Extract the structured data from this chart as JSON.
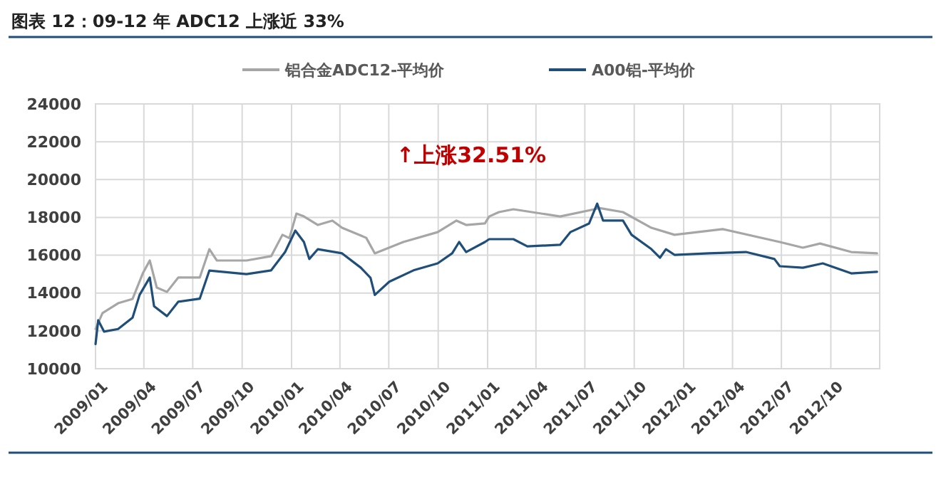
{
  "chart_data": {
    "type": "line",
    "title": "图表 12：09-12 年 ADC12 上涨近 33%",
    "annotations": [
      "↑上涨32.51%"
    ],
    "legend": "top",
    "grid": true,
    "line_style": "solid",
    "marker": "none",
    "xlim": [
      "2009-01-01",
      "2012-12-31"
    ],
    "xticks": [
      {
        "value": "2009-01-01",
        "label": "2009/01"
      },
      {
        "value": "2009-04-01",
        "label": "2009/04"
      },
      {
        "value": "2009-07-01",
        "label": "2009/07"
      },
      {
        "value": "2009-10-01",
        "label": "2009/10"
      },
      {
        "value": "2010-01-01",
        "label": "2010/01"
      },
      {
        "value": "2010-04-01",
        "label": "2010/04"
      },
      {
        "value": "2010-07-01",
        "label": "2010/07"
      },
      {
        "value": "2010-10-01",
        "label": "2010/10"
      },
      {
        "value": "2011-01-01",
        "label": "2011/01"
      },
      {
        "value": "2011-04-01",
        "label": "2011/04"
      },
      {
        "value": "2011-07-01",
        "label": "2011/07"
      },
      {
        "value": "2011-10-01",
        "label": "2011/10"
      },
      {
        "value": "2012-01-01",
        "label": "2012/01"
      },
      {
        "value": "2012-04-01",
        "label": "2012/04"
      },
      {
        "value": "2012-07-01",
        "label": "2012/07"
      },
      {
        "value": "2012-10-01",
        "label": "2012/10"
      }
    ],
    "ylim": [
      10000,
      24000
    ],
    "yticks": [
      10000,
      12000,
      14000,
      16000,
      18000,
      20000,
      22000,
      24000
    ],
    "series": [
      {
        "name": "铝合金ADC12-平均价",
        "color": "#a6a6a6",
        "x": [
          "2009-01-01",
          "2009-01-14",
          "2009-02-12",
          "2009-03-11",
          "2009-03-30",
          "2009-04-12",
          "2009-04-25",
          "2009-05-14",
          "2009-06-04",
          "2009-07-14",
          "2009-08-01",
          "2009-08-15",
          "2009-10-09",
          "2009-11-24",
          "2009-12-15",
          "2009-12-28",
          "2010-01-10",
          "2010-01-24",
          "2010-02-19",
          "2010-03-18",
          "2010-04-05",
          "2010-05-20",
          "2010-06-05",
          "2010-07-28",
          "2010-09-30",
          "2010-11-04",
          "2010-11-22",
          "2010-12-27",
          "2011-01-04",
          "2011-01-22",
          "2011-02-18",
          "2011-05-16",
          "2011-07-19",
          "2011-07-27",
          "2011-09-10",
          "2011-11-02",
          "2011-12-15",
          "2012-03-14",
          "2012-06-28",
          "2012-08-10",
          "2012-09-11",
          "2012-11-08",
          "2012-12-26"
        ],
        "values": [
          12100,
          12940,
          13460,
          13690,
          15040,
          15720,
          14290,
          14060,
          14820,
          14820,
          16320,
          15720,
          15720,
          15950,
          17080,
          16900,
          18200,
          18050,
          17600,
          17830,
          17450,
          16920,
          16100,
          16700,
          17220,
          17830,
          17600,
          17680,
          18050,
          18280,
          18430,
          18050,
          18430,
          18500,
          18280,
          17450,
          17080,
          17380,
          16700,
          16400,
          16620,
          16170,
          16100
        ]
      },
      {
        "name": "A00铝-平均价",
        "color": "#1f4e79",
        "x": [
          "2009-01-01",
          "2009-01-06",
          "2009-01-17",
          "2009-02-12",
          "2009-03-11",
          "2009-03-24",
          "2009-04-12",
          "2009-04-20",
          "2009-05-14",
          "2009-06-04",
          "2009-07-14",
          "2009-08-01",
          "2009-10-09",
          "2009-11-24",
          "2009-12-20",
          "2010-01-08",
          "2010-01-24",
          "2010-02-03",
          "2010-02-19",
          "2010-04-05",
          "2010-05-10",
          "2010-05-28",
          "2010-06-05",
          "2010-07-02",
          "2010-08-16",
          "2010-09-30",
          "2010-10-27",
          "2010-11-09",
          "2010-11-22",
          "2010-12-27",
          "2011-01-04",
          "2011-02-18",
          "2011-03-16",
          "2011-05-16",
          "2011-06-04",
          "2011-07-09",
          "2011-07-24",
          "2011-08-04",
          "2011-09-10",
          "2011-09-26",
          "2011-11-02",
          "2011-11-18",
          "2011-11-29",
          "2011-12-15",
          "2012-02-17",
          "2012-04-26",
          "2012-06-18",
          "2012-06-28",
          "2012-08-10",
          "2012-09-16",
          "2012-11-08",
          "2012-12-26"
        ],
        "values": [
          11300,
          12560,
          11960,
          12100,
          12700,
          13900,
          14820,
          13300,
          12780,
          13540,
          13700,
          15190,
          15000,
          15200,
          16170,
          17300,
          16700,
          15800,
          16320,
          16100,
          15340,
          14800,
          13900,
          14600,
          15200,
          15570,
          16100,
          16700,
          16170,
          16700,
          16850,
          16850,
          16470,
          16550,
          17220,
          17680,
          18730,
          17830,
          17830,
          17080,
          16320,
          15870,
          16320,
          16020,
          16100,
          16170,
          15800,
          15420,
          15340,
          15570,
          15040,
          15120
        ]
      }
    ]
  }
}
